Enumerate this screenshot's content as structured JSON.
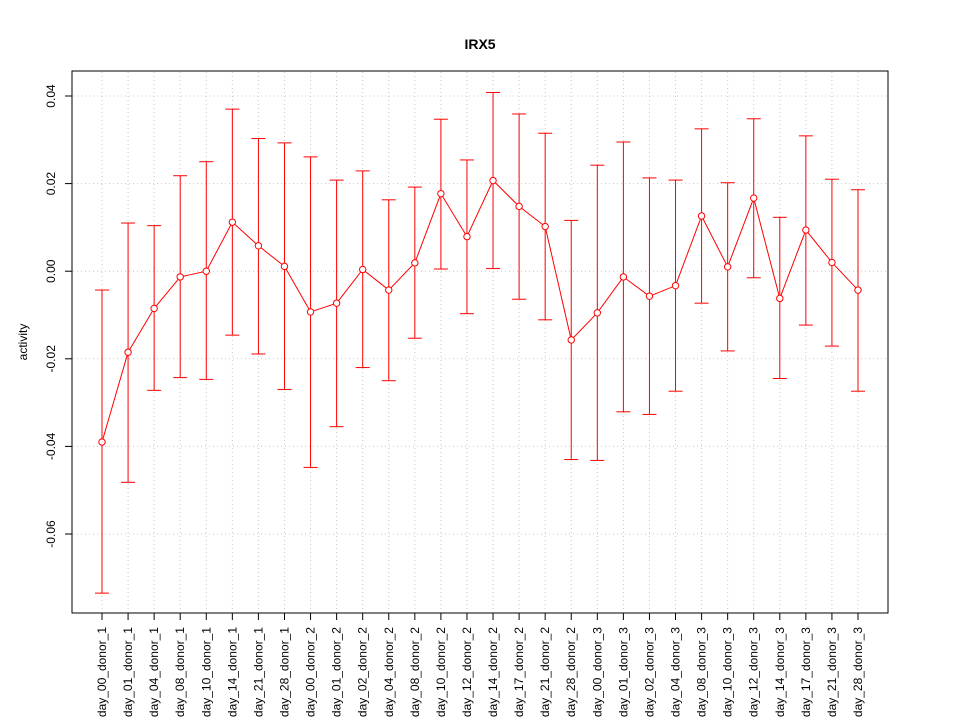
{
  "chart_data": {
    "type": "line",
    "title": "IRX5",
    "xlabel": "",
    "ylabel": "activity",
    "ylim": [
      -0.078,
      0.045
    ],
    "yticks": [
      0.04,
      0.02,
      0.0,
      -0.02,
      -0.04,
      -0.06
    ],
    "ytick_labels": [
      "0.04",
      "0.02",
      "0.00",
      "-0.02",
      "-0.04",
      "-0.06"
    ],
    "grid": true,
    "error_bars": true,
    "series_color": "#ff0000",
    "grid_color": "#c8c8c8",
    "categories": [
      "day_00_donor_1",
      "day_01_donor_1",
      "day_04_donor_1",
      "day_08_donor_1",
      "day_10_donor_1",
      "day_14_donor_1",
      "day_21_donor_1",
      "day_28_donor_1",
      "day_00_donor_2",
      "day_01_donor_2",
      "day_02_donor_2",
      "day_04_donor_2",
      "day_08_donor_2",
      "day_10_donor_2",
      "day_12_donor_2",
      "day_14_donor_2",
      "day_17_donor_2",
      "day_21_donor_2",
      "day_28_donor_2",
      "day_00_donor_3",
      "day_01_donor_3",
      "day_02_donor_3",
      "day_04_donor_3",
      "day_08_donor_3",
      "day_10_donor_3",
      "day_12_donor_3",
      "day_14_donor_3",
      "day_17_donor_3",
      "day_21_donor_3",
      "day_28_donor_3"
    ],
    "values": [
      -0.039,
      -0.0185,
      -0.0085,
      -0.0013,
      0.0,
      0.0112,
      0.0058,
      0.0011,
      -0.0093,
      -0.0073,
      0.0004,
      -0.0043,
      0.0019,
      0.0177,
      0.0079,
      0.0207,
      0.0148,
      0.0102,
      -0.0157,
      -0.0095,
      -0.0013,
      -0.0057,
      -0.0033,
      0.0126,
      0.001,
      0.0167,
      -0.0062,
      0.0094,
      0.002,
      -0.0043
    ],
    "upper": [
      -0.0043,
      0.011,
      0.0104,
      0.0218,
      0.025,
      0.037,
      0.0303,
      0.0293,
      0.0261,
      0.0208,
      0.0229,
      0.0163,
      0.0192,
      0.0347,
      0.0254,
      0.0408,
      0.0359,
      0.0315,
      0.0116,
      0.0242,
      0.0295,
      0.0213,
      0.0208,
      0.0325,
      0.0202,
      0.0348,
      0.0123,
      0.0309,
      0.021,
      0.0186
    ],
    "lower": [
      -0.0735,
      -0.0482,
      -0.0272,
      -0.0243,
      -0.0247,
      -0.0146,
      -0.0189,
      -0.027,
      -0.0448,
      -0.0355,
      -0.022,
      -0.025,
      -0.0153,
      0.0005,
      -0.0097,
      0.0006,
      -0.0064,
      -0.0111,
      -0.043,
      -0.0432,
      -0.0321,
      -0.0327,
      -0.0274,
      -0.0073,
      -0.0182,
      -0.0015,
      -0.0245,
      -0.0123,
      -0.0171,
      -0.0274
    ]
  }
}
